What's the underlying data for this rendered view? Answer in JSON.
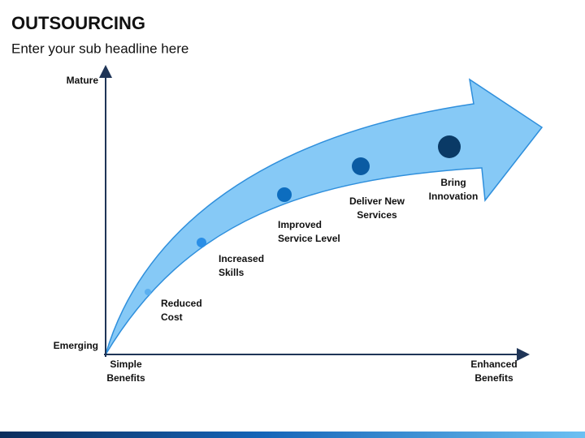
{
  "header": {
    "title": "OUTSOURCING",
    "subtitle": "Enter your sub headline here"
  },
  "axes": {
    "y_top": "Mature",
    "y_bottom": "Emerging",
    "x_left": [
      "Simple",
      "Benefits"
    ],
    "x_right": [
      "Enhanced",
      "Benefits"
    ]
  },
  "stages": [
    {
      "label": [
        "Reduced",
        "Cost"
      ]
    },
    {
      "label": [
        "Increased",
        "Skills"
      ]
    },
    {
      "label": [
        "Improved",
        "Service Level"
      ]
    },
    {
      "label": [
        "Deliver New",
        "Services"
      ]
    },
    {
      "label": [
        "Bring",
        "Innovation"
      ]
    }
  ]
}
